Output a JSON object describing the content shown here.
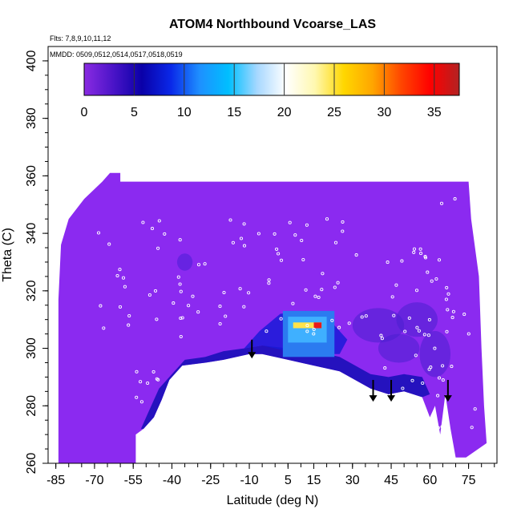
{
  "chart_data": {
    "type": "heatmap",
    "title": "ATOM4 Northbound Vcoarse_LAS",
    "subtitle_flights": "Flts: 7,8,9,10,11,12",
    "subtitle_dates": "MMDD: 0509,0512,0514,0517,0518,0519",
    "xlabel": "Latitude (deg N)",
    "ylabel": "Theta (C)",
    "xlim": [
      -88,
      86
    ],
    "ylim": [
      260,
      405
    ],
    "x_ticks": [
      -85,
      -70,
      -55,
      -40,
      -25,
      -10,
      5,
      15,
      30,
      45,
      60,
      75
    ],
    "x_tick_labels": [
      "-85",
      "-70",
      "-55",
      "-40",
      "-25",
      "-10",
      "5",
      "15",
      "30",
      "45",
      "60",
      "75"
    ],
    "y_ticks": [
      260,
      280,
      300,
      320,
      340,
      360,
      380,
      400
    ],
    "y_tick_labels": [
      "260",
      "280",
      "300",
      "320",
      "340",
      "360",
      "380",
      "400"
    ],
    "colorbar": {
      "range": [
        0,
        37.5
      ],
      "ticks": [
        0,
        5,
        10,
        15,
        20,
        25,
        30,
        35
      ],
      "tick_labels": [
        "0",
        "5",
        "10",
        "15",
        "20",
        "25",
        "30",
        "35"
      ],
      "colors": [
        "#8a2be2",
        "#4b14c8",
        "#0a00a8",
        "#0a28e8",
        "#1e90ff",
        "#00bfff",
        "#a8d8ff",
        "#ffffff",
        "#fff8b0",
        "#ffd700",
        "#ffa500",
        "#ff4500",
        "#ff0000",
        "#b22222"
      ]
    },
    "background_color": "#8b2af0",
    "arrow_latitudes": [
      -9,
      38,
      45,
      67
    ]
  }
}
